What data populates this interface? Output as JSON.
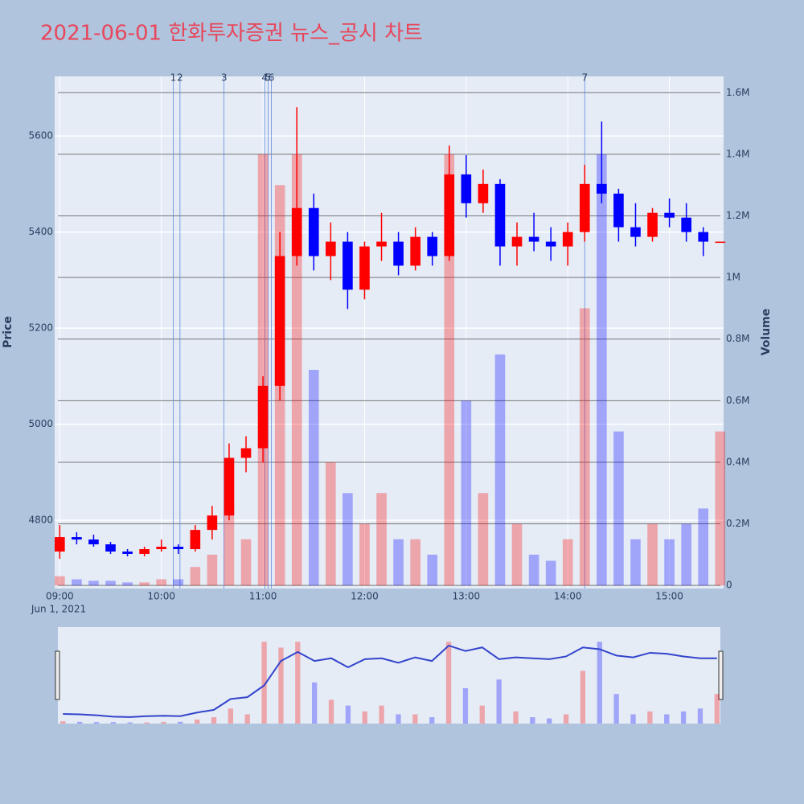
{
  "chart_data": {
    "type": "candlestick",
    "title": "2021-06-01 한화투자증권 뉴스_공시 차트",
    "ylabel": "Price",
    "y2label": "Volume",
    "x_date_label": "Jun 1, 2021",
    "increasing_color": "#ff0000",
    "decreasing_color": "#0000ff",
    "x": [
      "2021-06-01 09:00",
      "2021-06-01 09:10",
      "2021-06-01 09:20",
      "2021-06-01 09:30",
      "2021-06-01 09:40",
      "2021-06-01 09:50",
      "2021-06-01 10:00",
      "2021-06-01 10:10",
      "2021-06-01 10:20",
      "2021-06-01 10:30",
      "2021-06-01 10:40",
      "2021-06-01 10:50",
      "2021-06-01 11:00",
      "2021-06-01 11:10",
      "2021-06-01 11:20",
      "2021-06-01 11:30",
      "2021-06-01 11:40",
      "2021-06-01 11:50",
      "2021-06-01 12:00",
      "2021-06-01 12:10",
      "2021-06-01 12:20",
      "2021-06-01 12:30",
      "2021-06-01 12:40",
      "2021-06-01 12:50",
      "2021-06-01 13:00",
      "2021-06-01 13:10",
      "2021-06-01 13:20",
      "2021-06-01 13:30",
      "2021-06-01 13:40",
      "2021-06-01 13:50",
      "2021-06-01 14:00",
      "2021-06-01 14:10",
      "2021-06-01 14:20",
      "2021-06-01 14:30",
      "2021-06-01 14:40",
      "2021-06-01 14:50",
      "2021-06-01 15:00",
      "2021-06-01 15:10",
      "2021-06-01 15:20",
      "2021-06-01 15:30"
    ],
    "open": [
      4735,
      4765,
      4760,
      4750,
      4735,
      4730,
      4740,
      4745,
      4740,
      4780,
      4810,
      4930,
      4950,
      5080,
      5350,
      5450,
      5350,
      5380,
      5280,
      5370,
      5380,
      5330,
      5390,
      5350,
      5520,
      5460,
      5500,
      5370,
      5390,
      5380,
      5370,
      5400,
      5500,
      5480,
      5410,
      5390,
      5440,
      5430,
      5400,
      5380
    ],
    "high": [
      4790,
      4775,
      4770,
      4755,
      4740,
      4745,
      4760,
      4750,
      4790,
      4830,
      4960,
      4975,
      5100,
      5400,
      5660,
      5480,
      5420,
      5400,
      5380,
      5440,
      5400,
      5410,
      5400,
      5580,
      5560,
      5530,
      5510,
      5420,
      5440,
      5410,
      5420,
      5540,
      5630,
      5490,
      5460,
      5450,
      5470,
      5460,
      5410,
      5380
    ],
    "low": [
      4720,
      4750,
      4745,
      4730,
      4725,
      4725,
      4735,
      4730,
      4735,
      4760,
      4800,
      4900,
      4920,
      5050,
      5330,
      5320,
      5300,
      5240,
      5260,
      5340,
      5310,
      5320,
      5330,
      5340,
      5430,
      5440,
      5330,
      5330,
      5360,
      5340,
      5330,
      5380,
      5460,
      5380,
      5370,
      5380,
      5410,
      5380,
      5350,
      5380
    ],
    "close": [
      4765,
      4760,
      4750,
      4735,
      4730,
      4740,
      4745,
      4740,
      4780,
      4810,
      4930,
      4950,
      5080,
      5350,
      5450,
      5350,
      5380,
      5280,
      5370,
      5380,
      5330,
      5390,
      5350,
      5520,
      5460,
      5500,
      5370,
      5390,
      5380,
      5370,
      5400,
      5500,
      5480,
      5410,
      5390,
      5440,
      5430,
      5400,
      5380,
      5380
    ],
    "volume": [
      30000,
      20000,
      15000,
      15000,
      10000,
      10000,
      20000,
      20000,
      60000,
      100000,
      250000,
      150000,
      1400000,
      1300000,
      1400000,
      700000,
      400000,
      300000,
      200000,
      300000,
      150000,
      150000,
      100000,
      1400000,
      600000,
      300000,
      750000,
      200000,
      100000,
      80000,
      150000,
      900000,
      1400000,
      500000,
      150000,
      200000,
      150000,
      200000,
      250000,
      500000
    ],
    "xlim": [
      "2021-06-01 08:57",
      "2021-06-01 15:32"
    ],
    "xticks": [
      {
        "value": "2021-06-01 09:00",
        "label": "09:00"
      },
      {
        "value": "2021-06-01 10:00",
        "label": "10:00"
      },
      {
        "value": "2021-06-01 11:00",
        "label": "11:00"
      },
      {
        "value": "2021-06-01 12:00",
        "label": "12:00"
      },
      {
        "value": "2021-06-01 13:00",
        "label": "13:00"
      },
      {
        "value": "2021-06-01 14:00",
        "label": "14:00"
      },
      {
        "value": "2021-06-01 15:00",
        "label": "15:00"
      }
    ],
    "ylim": [
      4658,
      5724
    ],
    "yticks": [
      4800,
      5000,
      5200,
      5400,
      5600
    ],
    "y2lim": [
      -10000,
      1653000
    ],
    "y2ticks": [
      0,
      {
        "value": 200000,
        "label": "0.2M"
      },
      {
        "value": 400000,
        "label": "0.4M"
      },
      {
        "value": 600000,
        "label": "0.6M"
      },
      {
        "value": 800000,
        "label": "0.8M"
      },
      {
        "value": 1000000,
        "label": "1M"
      },
      {
        "value": 1200000,
        "label": "1.2M"
      },
      {
        "value": 1400000,
        "label": "1.4M"
      },
      {
        "value": 1600000,
        "label": "1.6M"
      }
    ],
    "news": [
      {
        "label": "1",
        "x": "2021-06-01 10:07"
      },
      {
        "label": "2",
        "x": "2021-06-01 10:11"
      },
      {
        "label": "3",
        "x": "2021-06-01 10:37"
      },
      {
        "label": "4",
        "x": "2021-06-01 11:01"
      },
      {
        "label": "5",
        "x": "2021-06-01 11:03"
      },
      {
        "label": "6",
        "x": "2021-06-01 11:05"
      },
      {
        "label": "7",
        "x": "2021-06-01 14:10"
      }
    ]
  }
}
